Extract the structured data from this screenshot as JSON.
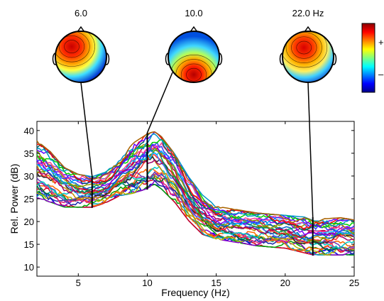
{
  "chart_data": {
    "type": "line",
    "xlabel": "Frequency (Hz)",
    "ylabel": "Rel. Power (dB)",
    "xlim": [
      2,
      25
    ],
    "ylim": [
      8,
      42
    ],
    "xticks": [
      5,
      10,
      15,
      20,
      25
    ],
    "yticks": [
      10,
      15,
      20,
      25,
      30,
      35,
      40
    ],
    "grid": false,
    "n_series": 32,
    "series_colors": [
      "#0000e6",
      "#d4001a",
      "#00a000",
      "#8a00c8",
      "#00a0b4",
      "#b4b400",
      "#ff6600",
      "#1a2aa8",
      "#e0207a",
      "#007a3a",
      "#6a3ab8",
      "#00c8c8",
      "#c88c00",
      "#2a2a2a",
      "#ff2a2a",
      "#3a7aff",
      "#5aa000",
      "#a0006a",
      "#0064c8",
      "#c8003a",
      "#009a64",
      "#7a00ff",
      "#00b4ff",
      "#9a9a00",
      "#ff3a9a",
      "#3a3aff",
      "#006464",
      "#ff0000",
      "#00d200",
      "#6400ff",
      "#0096c8",
      "#aa6400"
    ],
    "envelope": {
      "x": [
        2,
        3,
        4,
        5,
        6,
        7,
        8,
        9,
        10,
        10.5,
        11,
        12,
        13,
        14,
        15,
        16,
        18,
        20,
        22,
        23,
        24,
        25
      ],
      "upper": [
        38,
        35.5,
        32,
        30.5,
        30,
        31,
        34,
        37.5,
        39.5,
        40,
        39,
        35,
        30,
        26,
        23.5,
        23,
        22,
        21.5,
        21,
        20.8,
        21,
        20.5
      ],
      "lower": [
        25,
        24,
        23,
        23,
        23,
        24,
        25.5,
        26,
        27,
        28,
        27,
        24,
        20,
        17,
        16,
        15.5,
        14.5,
        14,
        12.5,
        12.5,
        12.5,
        12.5
      ]
    },
    "topomaps": [
      {
        "label": "6.0",
        "freq": 6,
        "pattern": "frontal"
      },
      {
        "label": "10.0",
        "freq": 10,
        "pattern": "occipital"
      },
      {
        "label": "22.0 Hz",
        "freq": 22,
        "pattern": "frontal-central"
      }
    ],
    "colorbar": {
      "plus_label": "+",
      "minus_label": "–",
      "colors": [
        "#8b0000",
        "#ff0000",
        "#ff8000",
        "#ffff00",
        "#80ff80",
        "#00ffff",
        "#0080ff",
        "#0000ff",
        "#00008b"
      ]
    }
  }
}
